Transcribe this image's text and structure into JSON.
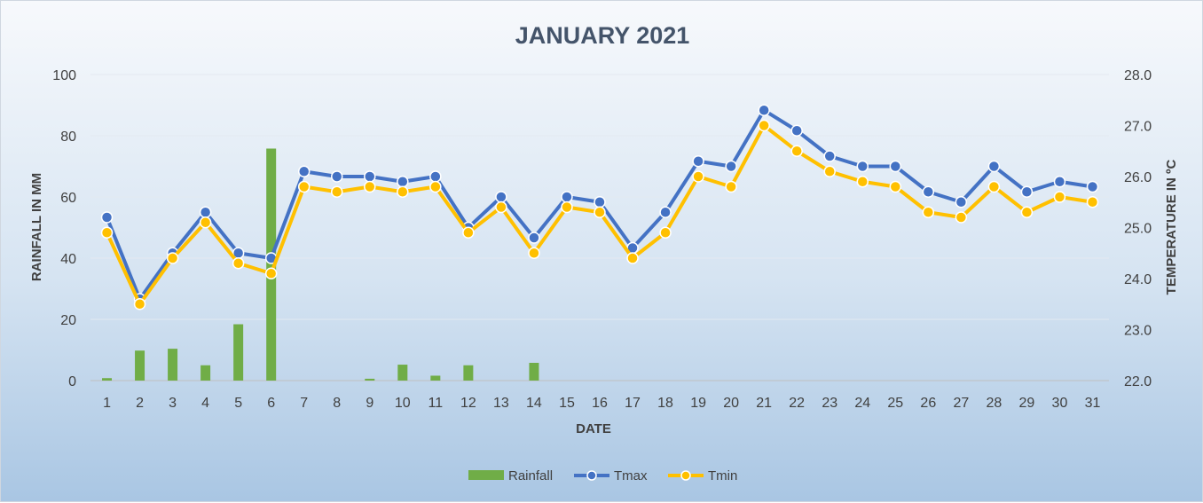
{
  "chart_data": {
    "type": "bar+line",
    "title": "JANUARY 2021",
    "xlabel": "DATE",
    "ylabel_left": "RAINFALL IN MM",
    "ylabel_right": "TEMPERATURE IN ºC",
    "categories": [
      "1",
      "2",
      "3",
      "4",
      "5",
      "6",
      "7",
      "8",
      "9",
      "10",
      "11",
      "12",
      "13",
      "14",
      "15",
      "16",
      "17",
      "18",
      "19",
      "20",
      "21",
      "22",
      "23",
      "24",
      "25",
      "26",
      "27",
      "28",
      "29",
      "30",
      "31"
    ],
    "y_left": {
      "min": 0,
      "max": 100,
      "ticks": [
        "0",
        "20",
        "40",
        "60",
        "80",
        "100"
      ]
    },
    "y_right": {
      "min": 22.0,
      "max": 28.0,
      "ticks": [
        "22.0",
        "23.0",
        "24.0",
        "25.0",
        "26.0",
        "27.0",
        "28.0"
      ]
    },
    "grid": true,
    "legend_position": "bottom",
    "series": [
      {
        "name": "Rainfall",
        "kind": "bar",
        "axis": "left",
        "color": "#70ad47",
        "values": [
          0.8,
          9.8,
          10.4,
          5.0,
          18.4,
          75.8,
          0,
          0,
          0.6,
          5.2,
          1.6,
          5.0,
          0,
          5.8,
          0,
          0,
          0,
          0,
          0,
          0,
          0,
          0,
          0,
          0,
          0,
          0,
          0,
          0,
          0,
          0,
          0
        ]
      },
      {
        "name": "Tmax",
        "kind": "line",
        "axis": "right",
        "color": "#4472c4",
        "values": [
          25.2,
          23.6,
          24.5,
          25.3,
          24.5,
          24.4,
          26.1,
          26.0,
          26.0,
          25.9,
          26.0,
          25.0,
          25.6,
          24.8,
          25.6,
          25.5,
          24.6,
          25.3,
          26.3,
          26.2,
          27.3,
          26.9,
          26.4,
          26.2,
          26.2,
          25.7,
          25.5,
          26.2,
          25.7,
          25.9,
          25.8
        ]
      },
      {
        "name": "Tmin",
        "kind": "line",
        "axis": "right",
        "color": "#ffc000",
        "values": [
          24.9,
          23.5,
          24.4,
          25.1,
          24.3,
          24.1,
          25.8,
          25.7,
          25.8,
          25.7,
          25.8,
          24.9,
          25.4,
          24.5,
          25.4,
          25.3,
          24.4,
          24.9,
          26.0,
          25.8,
          27.0,
          26.5,
          26.1,
          25.9,
          25.8,
          25.3,
          25.2,
          25.8,
          25.3,
          25.6,
          25.5
        ]
      }
    ]
  }
}
